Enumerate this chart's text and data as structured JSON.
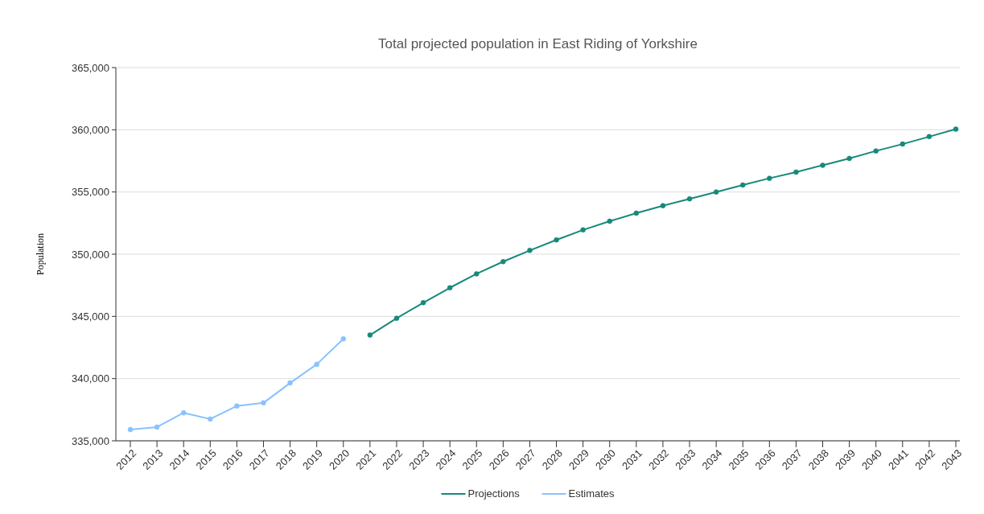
{
  "chart_data": {
    "type": "line",
    "title": "Total projected population in East Riding of Yorkshire",
    "ylabel": "Population",
    "categories": [
      "2012",
      "2013",
      "2014",
      "2015",
      "2016",
      "2017",
      "2018",
      "2019",
      "2020",
      "2021",
      "2022",
      "2023",
      "2024",
      "2025",
      "2026",
      "2027",
      "2028",
      "2029",
      "2030",
      "2031",
      "2032",
      "2033",
      "2034",
      "2035",
      "2036",
      "2037",
      "2038",
      "2039",
      "2040",
      "2041",
      "2042",
      "2043"
    ],
    "series": [
      {
        "name": "Projections",
        "color": "#17897a",
        "values": [
          null,
          null,
          null,
          null,
          null,
          null,
          null,
          null,
          null,
          343500,
          344850,
          346100,
          347300,
          348420,
          349400,
          350300,
          351150,
          351950,
          352650,
          353300,
          353900,
          354450,
          355000,
          355560,
          356100,
          356600,
          357150,
          357700,
          358300,
          358850,
          359450,
          360050
        ]
      },
      {
        "name": "Estimates",
        "color": "#88c2ff",
        "values": [
          335900,
          336100,
          337250,
          336750,
          337800,
          338050,
          339650,
          341150,
          343200,
          null,
          null,
          null,
          null,
          null,
          null,
          null,
          null,
          null,
          null,
          null,
          null,
          null,
          null,
          null,
          null,
          null,
          null,
          null,
          null,
          null,
          null,
          null
        ]
      }
    ],
    "ylim": [
      335000,
      365000
    ],
    "yticks": [
      {
        "value": 335000,
        "label": "335,000"
      },
      {
        "value": 340000,
        "label": "340,000"
      },
      {
        "value": 345000,
        "label": "345,000"
      },
      {
        "value": 350000,
        "label": "350,000"
      },
      {
        "value": 355000,
        "label": "355,000"
      },
      {
        "value": 360000,
        "label": "360,000"
      },
      {
        "value": 365000,
        "label": "365,000"
      }
    ],
    "grid": "y",
    "legend": "bottom",
    "marker": "circle",
    "line_style": "solid"
  }
}
